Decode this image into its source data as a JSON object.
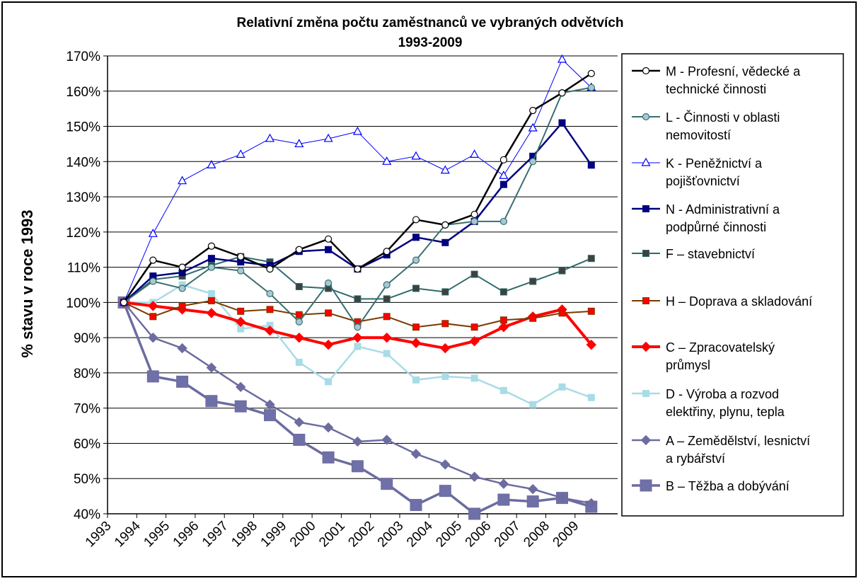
{
  "chart_data": {
    "type": "line",
    "title": "Relativní změna počtu zaměstnanců ve vybraných odvětvích",
    "subtitle": "1993-2009",
    "ylabel": "% stavu v roce 1993",
    "xlabel": "",
    "x": [
      "1993",
      "1994",
      "1995",
      "1996",
      "1997",
      "1998",
      "1999",
      "2000",
      "2001",
      "2002",
      "2003",
      "2004",
      "2005",
      "2006",
      "2007",
      "2008",
      "2009"
    ],
    "ylim": [
      40,
      170
    ],
    "yticks": [
      "40%",
      "50%",
      "60%",
      "70%",
      "80%",
      "90%",
      "100%",
      "110%",
      "120%",
      "130%",
      "140%",
      "150%",
      "160%",
      "170%"
    ],
    "grid": "horizontal",
    "legend_position": "right",
    "series": [
      {
        "name": "M - Profesní, vědecké a technické činnosti",
        "legend_lines": [
          "M - Profesní, vědecké a",
          "technické činnosti"
        ],
        "color": "#000000",
        "marker": "circle-open",
        "stroke_width": 2.5,
        "values": [
          100,
          112,
          110,
          116,
          113,
          109.5,
          115,
          118,
          109.5,
          114.5,
          123.5,
          122,
          125,
          140.5,
          154.5,
          159.5,
          165
        ]
      },
      {
        "name": "L - Činnosti v oblasti nemovitostí",
        "legend_lines": [
          "L - Činnosti v oblasti",
          "nemovitostí"
        ],
        "color": "#3a6f6f",
        "marker": "circle-filled",
        "marker_fill": "#a8c7d4",
        "stroke_width": 2,
        "values": [
          100,
          106,
          104,
          110,
          109,
          102.5,
          94.5,
          105.5,
          93,
          105,
          112,
          122,
          123,
          123,
          140,
          159.5,
          161
        ]
      },
      {
        "name": "K - Peněžnictví a pojišťovnictví",
        "legend_lines": [
          "K - Peněžnictví a",
          "pojišťovnictví"
        ],
        "color": "#0000ff",
        "marker": "triangle-open",
        "stroke_width": 1,
        "values": [
          100,
          119.5,
          134.5,
          139,
          142,
          146.5,
          145,
          146.5,
          148.5,
          140,
          141.5,
          137.5,
          142,
          136,
          149.5,
          169,
          161
        ]
      },
      {
        "name": "N - Administrativní a podpůrné činnosti",
        "legend_lines": [
          "N - Administrativní a",
          "podpůrné činnosti"
        ],
        "color": "#000080",
        "marker": "square-filled",
        "stroke_width": 2.5,
        "values": [
          100,
          107.5,
          108.5,
          112.5,
          111.5,
          110.5,
          114.5,
          115,
          109.5,
          113.5,
          118.5,
          117,
          123,
          133.5,
          141.5,
          151,
          139
        ]
      },
      {
        "name": "F – stavebnictví",
        "legend_lines": [
          "F – stavebnictví"
        ],
        "color": "#2f6b6b",
        "marker": "square-filled",
        "marker_fill": "#404040",
        "stroke_width": 2,
        "values": [
          100,
          106.5,
          107.5,
          110.5,
          113,
          111.5,
          104.5,
          104,
          101,
          101,
          104,
          103,
          108,
          103,
          106,
          109,
          112.5
        ]
      },
      {
        "name": "H – Doprava a skladování",
        "legend_lines": [
          "H – Doprava a skladování"
        ],
        "color": "#7a3a00",
        "marker": "square-filled",
        "marker_fill": "#ff0000",
        "stroke_width": 2,
        "values": [
          100,
          96,
          99,
          100.5,
          97.5,
          98,
          96.5,
          97,
          94.5,
          96,
          93,
          94,
          93,
          95,
          95.5,
          97,
          97.5
        ]
      },
      {
        "name": "C – Zpracovatelský průmysl",
        "legend_lines": [
          "C – Zpracovatelský",
          "průmysl"
        ],
        "color": "#ff0000",
        "marker": "diamond-filled",
        "stroke_width": 4,
        "values": [
          100,
          99,
          98,
          97,
          94.5,
          92,
          90,
          88,
          90,
          90,
          88.5,
          87,
          89,
          93,
          96,
          98,
          88
        ]
      },
      {
        "name": "D - Výroba a rozvod elektřiny, plynu, tepla",
        "legend_lines": [
          "D - Výroba a rozvod",
          "elektřiny, plynu, tepla"
        ],
        "color": "#a8dce6",
        "marker": "square-filled",
        "stroke_width": 2.5,
        "values": [
          100,
          100,
          105,
          102.5,
          92.5,
          93.5,
          83,
          77.5,
          87.5,
          85.5,
          78,
          79,
          78.5,
          75,
          71,
          76,
          73
        ]
      },
      {
        "name": "A – Zemědělství, lesnictví a rybářství",
        "legend_lines": [
          "A – Zemědělství, lesnictví",
          "a rybářství"
        ],
        "color": "#6c6ca0",
        "marker": "diamond-filled",
        "stroke_width": 2.5,
        "values": [
          100,
          90,
          87,
          81.5,
          76,
          71,
          66,
          64.5,
          60.5,
          61,
          57,
          54,
          50.5,
          48.5,
          47,
          44.5,
          43
        ]
      },
      {
        "name": "B – Těžba a dobývání",
        "legend_lines": [
          "B – Těžba a dobývání"
        ],
        "color": "#6c6ca0",
        "marker": "square-filled",
        "marker_fill": "#7070a8",
        "stroke_width": 3.5,
        "marker_size": 16,
        "values": [
          100,
          79,
          77.5,
          72,
          70.5,
          68,
          61,
          56,
          53.5,
          48.5,
          42.5,
          46.5,
          40,
          44,
          43.5,
          44.5,
          42
        ]
      }
    ]
  }
}
